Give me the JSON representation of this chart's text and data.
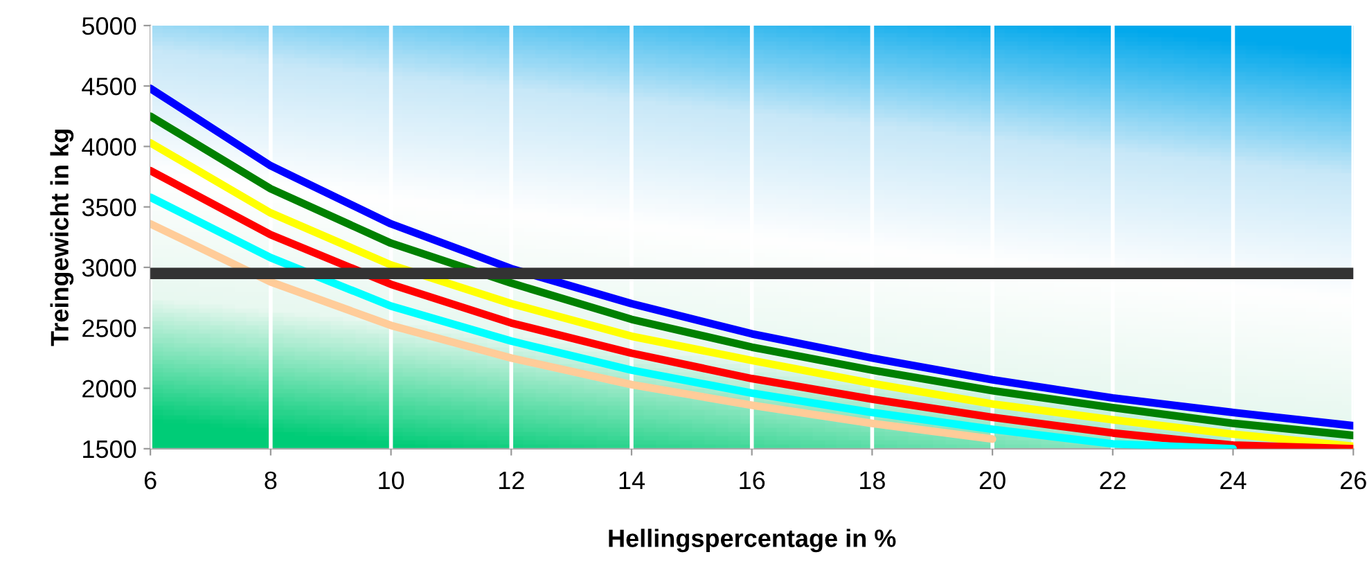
{
  "chart_data": {
    "type": "line",
    "xlabel": "Hellingspercentage in %",
    "ylabel": "Treingewicht in kg",
    "x": [
      6,
      8,
      10,
      12,
      14,
      16,
      18,
      20,
      22,
      24,
      26
    ],
    "xlim": [
      6,
      26
    ],
    "xticks": [
      6,
      8,
      10,
      12,
      14,
      16,
      18,
      20,
      22,
      24,
      26
    ],
    "ylim": [
      1500,
      5000
    ],
    "yticks": [
      1500,
      2000,
      2500,
      3000,
      3500,
      4000,
      4500,
      5000
    ],
    "grid": "x",
    "legend": false,
    "marker": "none",
    "line_style": "solid",
    "series": [
      {
        "color": "#0000ff",
        "values": [
          4480,
          3840,
          3360,
          2990,
          2700,
          2450,
          2250,
          2070,
          1920,
          1800,
          1690
        ]
      },
      {
        "color": "#008000",
        "values": [
          4250,
          3650,
          3200,
          2870,
          2570,
          2340,
          2150,
          1980,
          1840,
          1710,
          1610
        ]
      },
      {
        "color": "#ffff00",
        "values": [
          4030,
          3450,
          3020,
          2700,
          2430,
          2230,
          2040,
          1870,
          1740,
          1620,
          1520
        ]
      },
      {
        "color": "#ff0000",
        "values": [
          3800,
          3270,
          2860,
          2540,
          2290,
          2080,
          1910,
          1760,
          1630,
          1530,
          1500
        ]
      },
      {
        "color": "#00ffff",
        "values": [
          3580,
          3080,
          2680,
          2390,
          2150,
          1960,
          1800,
          1660,
          1540,
          1500,
          null
        ]
      },
      {
        "color": "#ffcc99",
        "values": [
          3360,
          2880,
          2520,
          2250,
          2030,
          1860,
          1710,
          1580,
          null,
          null,
          null
        ]
      }
    ],
    "ref_lines": [
      {
        "axis": "y",
        "value": 2950,
        "color": "#333333"
      }
    ]
  }
}
